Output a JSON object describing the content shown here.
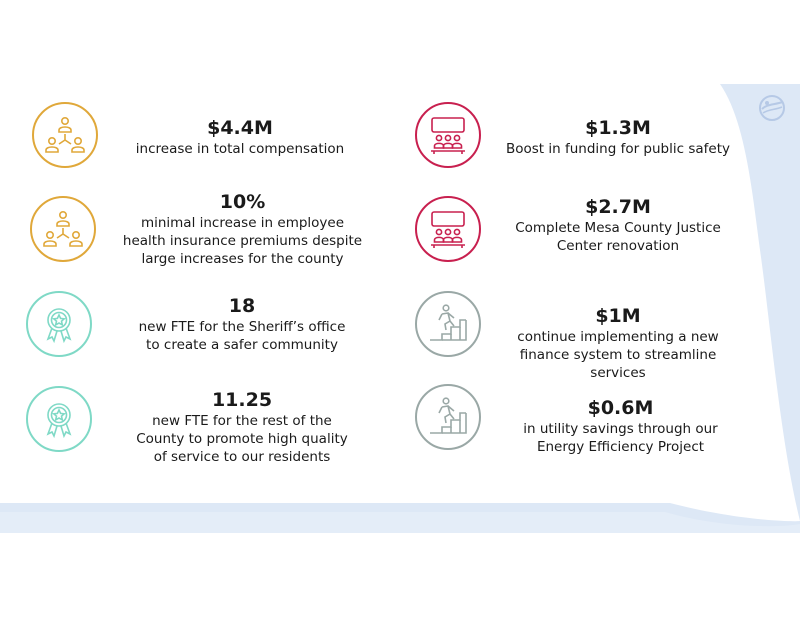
{
  "brand": {
    "logo_icon": "mesa-county-logo-icon"
  },
  "colors": {
    "gold": "#e0a83a",
    "crimson": "#c8204f",
    "teal": "#7fd9c6",
    "gray": "#9aa8a6",
    "band": "#dde8f6"
  },
  "left_items": [
    {
      "icon": "people-network-icon",
      "figure": "$4.4M",
      "description": "increase in total compensation"
    },
    {
      "icon": "people-network-icon",
      "figure": "10%",
      "description": "minimal increase in employee\nhealth insurance premiums despite\nlarge increases for the county"
    },
    {
      "icon": "award-ribbon-icon",
      "figure": "18",
      "description": "new FTE for the Sheriff’s office\nto create a safer community"
    },
    {
      "icon": "award-ribbon-icon",
      "figure": "11.25",
      "description": "new FTE for the rest of the\nCounty to promote high quality\nof service to our residents"
    }
  ],
  "right_items": [
    {
      "icon": "audience-board-icon",
      "figure": "$1.3M",
      "description": "Boost in funding for public safety"
    },
    {
      "icon": "audience-board-icon",
      "figure": "$2.7M",
      "description": "Complete Mesa County Justice\nCenter renovation"
    },
    {
      "icon": "climbing-stairs-icon",
      "figure": "$1M",
      "description": "continue implementing a new\nfinance system to streamline\nservices"
    },
    {
      "icon": "climbing-stairs-icon",
      "figure": "$0.6M",
      "description": "in utility savings through our\nEnergy Efficiency Project"
    }
  ]
}
